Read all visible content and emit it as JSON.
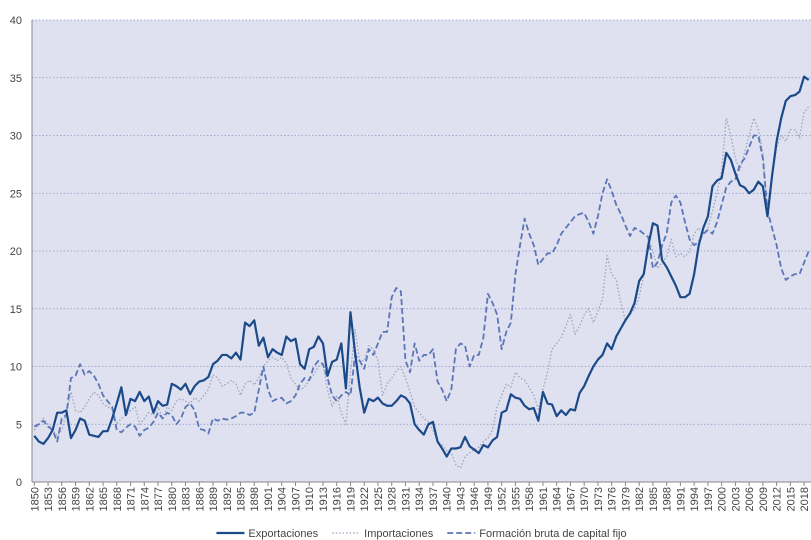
{
  "chart_data": {
    "type": "line",
    "x": [
      1850,
      1851,
      1852,
      1853,
      1854,
      1855,
      1856,
      1857,
      1858,
      1859,
      1860,
      1861,
      1862,
      1863,
      1864,
      1865,
      1866,
      1867,
      1868,
      1869,
      1870,
      1871,
      1872,
      1873,
      1874,
      1875,
      1876,
      1877,
      1878,
      1879,
      1880,
      1881,
      1882,
      1883,
      1884,
      1885,
      1886,
      1887,
      1888,
      1889,
      1890,
      1891,
      1892,
      1893,
      1894,
      1895,
      1896,
      1897,
      1898,
      1899,
      1900,
      1901,
      1902,
      1903,
      1904,
      1905,
      1906,
      1907,
      1908,
      1909,
      1910,
      1911,
      1912,
      1913,
      1914,
      1915,
      1916,
      1917,
      1918,
      1919,
      1920,
      1921,
      1922,
      1923,
      1924,
      1925,
      1926,
      1927,
      1928,
      1929,
      1930,
      1931,
      1932,
      1933,
      1934,
      1935,
      1936,
      1937,
      1938,
      1939,
      1940,
      1941,
      1942,
      1943,
      1944,
      1945,
      1946,
      1947,
      1948,
      1949,
      1950,
      1951,
      1952,
      1953,
      1954,
      1955,
      1956,
      1957,
      1958,
      1959,
      1960,
      1961,
      1962,
      1963,
      1964,
      1965,
      1966,
      1967,
      1968,
      1969,
      1970,
      1971,
      1972,
      1973,
      1974,
      1975,
      1976,
      1977,
      1978,
      1979,
      1980,
      1981,
      1982,
      1983,
      1984,
      1985,
      1986,
      1987,
      1988,
      1989,
      1990,
      1991,
      1992,
      1993,
      1994,
      1995,
      1996,
      1997,
      1998,
      1999,
      2000,
      2001,
      2002,
      2003,
      2004,
      2005,
      2006,
      2007,
      2008,
      2009,
      2010,
      2011,
      2012,
      2013,
      2014,
      2015,
      2016,
      2017,
      2018,
      2019
    ],
    "series": [
      {
        "name": "Exportaciones",
        "color": "#1b4a8a",
        "dash": "solid",
        "values": [
          4,
          3.5,
          3.3,
          3.8,
          4.5,
          6,
          6,
          6.2,
          3.8,
          4.5,
          5.5,
          5.3,
          4.1,
          4,
          3.9,
          4.4,
          4.4,
          5.5,
          6.8,
          8.2,
          5.8,
          7.2,
          7,
          7.8,
          7,
          7.4,
          6,
          7,
          6.6,
          6.7,
          8.5,
          8.3,
          8,
          8.5,
          7.6,
          8.3,
          8.7,
          8.8,
          9.1,
          10.2,
          10.5,
          11,
          11,
          10.7,
          11.2,
          10.6,
          13.8,
          13.5,
          14,
          11.8,
          12.5,
          10.8,
          11.5,
          11.2,
          11,
          12.6,
          12.2,
          12.4,
          10.2,
          9.8,
          11.5,
          11.7,
          12.6,
          12,
          9.2,
          10.4,
          10.6,
          12,
          8.1,
          14.7,
          11.2,
          8.2,
          6,
          7.2,
          7,
          7.3,
          6.8,
          6.6,
          6.6,
          7,
          7.5,
          7.3,
          6.8,
          5,
          4.5,
          4.1,
          5,
          5.2,
          3.5,
          2.9,
          2.2,
          2.9,
          2.9,
          3,
          3.9,
          3.1,
          2.8,
          2.5,
          3.2,
          3,
          3.6,
          3.9,
          6,
          6.2,
          7.6,
          7.3,
          7.2,
          6.6,
          6.3,
          6.4,
          5.3,
          7.8,
          6.8,
          6.7,
          5.7,
          6.2,
          5.8,
          6.3,
          6.2,
          7.7,
          8.3,
          9.2,
          10,
          10.6,
          11,
          12,
          11.5,
          12.6,
          13.3,
          14,
          14.6,
          15.5,
          17.4,
          18,
          20.5,
          22.4,
          22.2,
          19.2,
          18.6,
          17.8,
          17,
          16,
          16,
          16.3,
          18,
          20.5,
          22,
          23,
          25.6,
          26.1,
          26.3,
          28.5,
          27.9,
          26.7,
          25.7,
          25.5,
          25,
          25.3,
          26,
          25.6,
          23,
          26.5,
          29.5,
          31.5,
          33,
          33.4,
          33.5,
          33.8,
          35.1,
          34.8
        ]
      },
      {
        "name": "Importaciones",
        "color": "#9da3b9",
        "dash": "dotted",
        "values": [
          4.5,
          5,
          5.5,
          5,
          4.5,
          4,
          4.5,
          6,
          7.8,
          6.2,
          6,
          6.5,
          7.2,
          7.8,
          7.5,
          6.8,
          6.5,
          6.3,
          5,
          5.5,
          5.8,
          6.2,
          6.5,
          5,
          5.5,
          6,
          5.8,
          6.5,
          5.5,
          6.5,
          6.2,
          7,
          7.2,
          7,
          6.8,
          7.3,
          7,
          7.5,
          8,
          9.3,
          9,
          8.3,
          8.5,
          8.8,
          8.5,
          7.5,
          8.5,
          8.8,
          8.4,
          9,
          10,
          10.5,
          10.8,
          10.5,
          10.8,
          10.3,
          9,
          8.5,
          8,
          8.2,
          8.8,
          9.3,
          10,
          10.2,
          8,
          6.5,
          7.5,
          6,
          5,
          9.5,
          13.2,
          10.5,
          10.5,
          11.8,
          11.5,
          10.5,
          7.5,
          8.5,
          9,
          9.6,
          10,
          9,
          7.8,
          6.5,
          6,
          5.5,
          5.2,
          4.5,
          3.5,
          3.2,
          2.7,
          2.5,
          1.5,
          1.2,
          2.2,
          2.5,
          2.8,
          3,
          3.5,
          3.8,
          4.5,
          6.5,
          7.5,
          8.5,
          8.2,
          9.5,
          9,
          8.8,
          8.2,
          7.5,
          6.3,
          8,
          9.5,
          11.5,
          12,
          12.5,
          13.5,
          14.5,
          12.8,
          13.5,
          14.5,
          15,
          13.8,
          14.8,
          15.8,
          19.6,
          18,
          17.5,
          15.5,
          14,
          14.5,
          15,
          16,
          18,
          21,
          20,
          18.5,
          19,
          19.5,
          21,
          19.5,
          19.8,
          19.5,
          20,
          21.5,
          22,
          21.5,
          22,
          23.5,
          25,
          27,
          31.5,
          30,
          28,
          27,
          28.5,
          30,
          31.5,
          30.5,
          28.5,
          23.5,
          26.5,
          29,
          30,
          29.5,
          30.5,
          30.5,
          29.8,
          32,
          32.5
        ]
      },
      {
        "name": "Formación bruta de capital fijo",
        "color": "#5a76b6",
        "dash": "dashed",
        "values": [
          4.8,
          5,
          5.3,
          4.8,
          4.5,
          3.5,
          5.5,
          5.8,
          9,
          9.2,
          10.2,
          9.3,
          9.6,
          9.2,
          8.5,
          7.5,
          7,
          6.5,
          4.5,
          4.3,
          4.7,
          5,
          4.8,
          4,
          4.5,
          4.7,
          5.2,
          6,
          5.5,
          6,
          5.8,
          5,
          5.5,
          6.5,
          6.8,
          6.2,
          4.6,
          4.5,
          4.2,
          5.5,
          5.3,
          5.5,
          5.4,
          5.5,
          5.7,
          6,
          6,
          5.8,
          6,
          8,
          10,
          8,
          7,
          7.2,
          7.3,
          6.8,
          7,
          7.5,
          8.5,
          9,
          8.8,
          10,
          10.5,
          10.2,
          9,
          7.5,
          7,
          7.5,
          7.8,
          7.5,
          11,
          10.5,
          9.8,
          11.5,
          11,
          12,
          13,
          13,
          16,
          16.8,
          16.5,
          10.5,
          9.5,
          12,
          10.5,
          11,
          11,
          11.5,
          8.7,
          8,
          7,
          8,
          11.5,
          12,
          11.8,
          10,
          11,
          11,
          12.5,
          16.3,
          15.5,
          14.5,
          11.5,
          13,
          13.8,
          18,
          20.5,
          22.8,
          21.5,
          20.5,
          18.8,
          19.3,
          19.8,
          19.8,
          20.5,
          21.5,
          22,
          22.5,
          23,
          23.2,
          23.3,
          22.5,
          21.5,
          23,
          25,
          26.2,
          25.2,
          24,
          23.2,
          22.2,
          21.3,
          22,
          21.8,
          21.5,
          21.2,
          18.5,
          19,
          20.5,
          21.5,
          24.2,
          24.8,
          24.2,
          22.5,
          21,
          20.5,
          20.8,
          21.5,
          21.8,
          21.5,
          22.5,
          24,
          25.5,
          26,
          26.2,
          27.5,
          28,
          29,
          30,
          30,
          28,
          23.5,
          22,
          20.5,
          18.5,
          17.5,
          17.8,
          18,
          18,
          19,
          20
        ]
      }
    ],
    "xlim": [
      1849.5,
      2019.5
    ],
    "xticks": [
      1850,
      1853,
      1856,
      1859,
      1862,
      1865,
      1868,
      1871,
      1874,
      1877,
      1880,
      1883,
      1886,
      1889,
      1892,
      1895,
      1898,
      1901,
      1904,
      1907,
      1910,
      1913,
      1916,
      1919,
      1922,
      1925,
      1928,
      1931,
      1934,
      1937,
      1940,
      1943,
      1946,
      1949,
      1952,
      1955,
      1958,
      1961,
      1964,
      1967,
      1970,
      1973,
      1976,
      1979,
      1982,
      1985,
      1988,
      1991,
      1994,
      1997,
      2000,
      2003,
      2006,
      2009,
      2012,
      2015,
      2018
    ],
    "ylim": [
      0,
      40
    ],
    "yticks": [
      0,
      5,
      10,
      15,
      20,
      25,
      30,
      35,
      40
    ],
    "grid": true,
    "legend": "bottom"
  }
}
